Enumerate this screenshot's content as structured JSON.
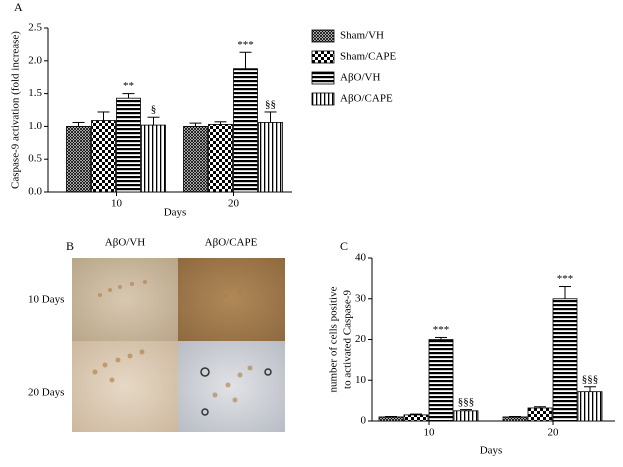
{
  "chart_data": [
    {
      "type": "bar",
      "panel_label": "A",
      "ylabel": "Caspase-9 activation (fold increase)",
      "xlabel": "Days",
      "categories": [
        "10",
        "20"
      ],
      "ylim": [
        0,
        2.5
      ],
      "yticks": [
        {
          "value": 0,
          "label": "0.0"
        },
        0.5,
        {
          "value": 1,
          "label": "1.0"
        },
        1.5,
        {
          "value": 2,
          "label": "2.0"
        },
        2.5
      ],
      "legend": "right",
      "series": [
        {
          "name": "Sham/VH",
          "color": "#000000",
          "pattern": "crosshatch",
          "values": [
            1.0,
            1.0
          ],
          "errors": [
            0.06,
            0.05
          ],
          "annotations": [
            null,
            null
          ]
        },
        {
          "name": "Sham/CAPE",
          "color": "#000000",
          "pattern": "checker",
          "values": [
            1.09,
            1.03
          ],
          "errors": [
            0.13,
            0.04
          ],
          "annotations": [
            null,
            null
          ]
        },
        {
          "name": "AβO/VH",
          "color": "#000000",
          "pattern": "hstripe",
          "values": [
            1.43,
            1.88
          ],
          "errors": [
            0.07,
            0.25
          ],
          "annotations": [
            "**",
            "***"
          ]
        },
        {
          "name": "AβO/CAPE",
          "color": "#000000",
          "pattern": "vstripe",
          "values": [
            1.02,
            1.06
          ],
          "errors": [
            0.12,
            0.16
          ],
          "annotations": [
            "§",
            "§§"
          ]
        }
      ]
    },
    {
      "type": "bar",
      "panel_label": "C",
      "ylabel": [
        "number of cells positive",
        "to activated Caspase-9"
      ],
      "xlabel": "Days",
      "categories": [
        "10",
        "20"
      ],
      "ylim": [
        0,
        40
      ],
      "yticks": [
        0,
        10,
        20,
        30,
        40
      ],
      "series": [
        {
          "color": "#000000",
          "pattern": "crosshatch",
          "values": [
            1,
            1
          ],
          "errors": [
            0.1,
            0.1
          ],
          "annotations": [
            null,
            null
          ]
        },
        {
          "color": "#000000",
          "pattern": "checker",
          "values": [
            1.5,
            3.2
          ],
          "errors": [
            0.2,
            0.3
          ],
          "annotations": [
            null,
            null
          ]
        },
        {
          "color": "#000000",
          "pattern": "hstripe",
          "values": [
            20,
            30
          ],
          "errors": [
            0.5,
            3
          ],
          "annotations": [
            "***",
            "***"
          ]
        },
        {
          "color": "#000000",
          "pattern": "vstripe",
          "values": [
            2.5,
            7.2
          ],
          "errors": [
            0.3,
            1.2
          ],
          "annotations": [
            "§§§",
            "§§§"
          ]
        }
      ]
    }
  ],
  "panel_b": {
    "label": "B",
    "columns": [
      "AβO/VH",
      "AβO/CAPE"
    ],
    "rows": [
      "10 Days",
      "20 Days"
    ]
  }
}
